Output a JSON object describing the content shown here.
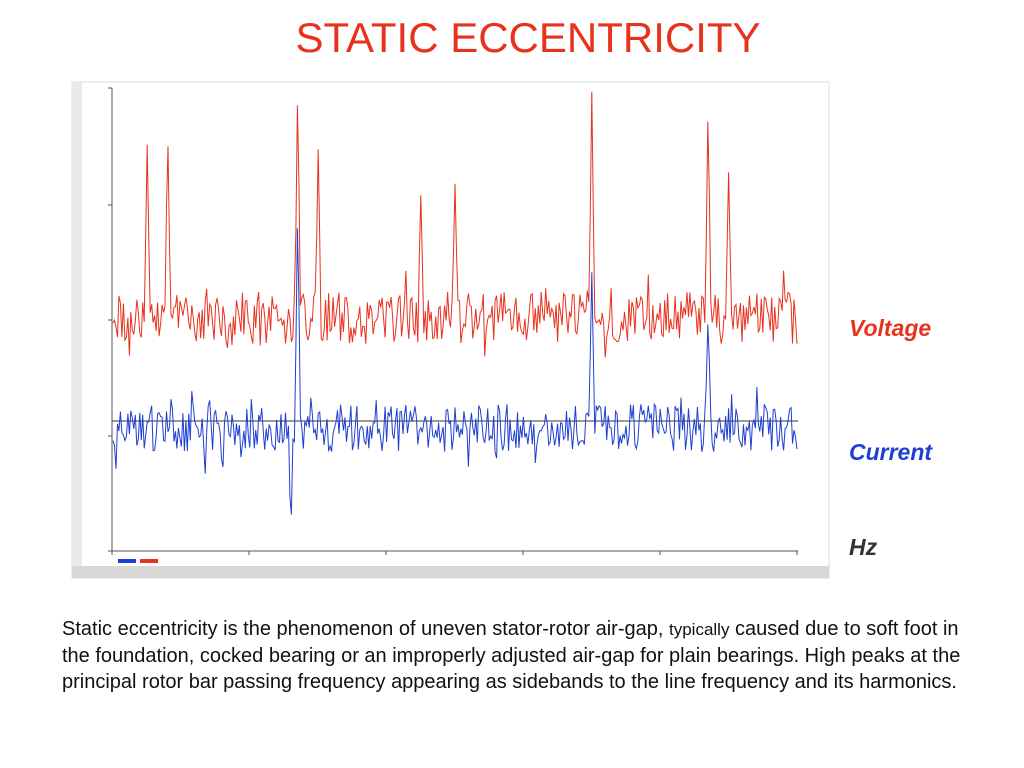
{
  "slide": {
    "title": "STATIC ECCENTRICITY",
    "description_main": "Static eccentricity is the phenomenon of uneven stator-rotor air-gap,",
    "description_small": "typically",
    "description_rest": "caused due to soft foot in the foundation, cocked bearing or an improperly adjusted air-gap for plain bearings. High peaks at the principal rotor bar passing frequency appearing as sidebands to the line frequency and its harmonics."
  },
  "legend": {
    "voltage": "Voltage",
    "current": "Current",
    "hz": "Hz"
  },
  "colors": {
    "title": "#e8321e",
    "voltage": "#e8321e",
    "current": "#1f3fd0",
    "zero_line": "#333333"
  },
  "chart_data": {
    "type": "line",
    "series": [
      {
        "name": "Voltage",
        "peaks": [
          {
            "x": 0.05,
            "y": 0.72
          },
          {
            "x": 0.08,
            "y": 0.8
          },
          {
            "x": 0.27,
            "y": 1.0
          },
          {
            "x": 0.3,
            "y": 0.7
          },
          {
            "x": 0.45,
            "y": 0.5
          },
          {
            "x": 0.5,
            "y": 0.55
          },
          {
            "x": 0.7,
            "y": 0.95
          },
          {
            "x": 0.87,
            "y": 0.92
          },
          {
            "x": 0.9,
            "y": 0.6
          }
        ]
      },
      {
        "name": "Current",
        "peaks": [
          {
            "x": 0.27,
            "y": 0.8
          },
          {
            "x": 0.7,
            "y": 0.55
          },
          {
            "x": 0.87,
            "y": 0.4
          }
        ],
        "dips": [
          {
            "x": 0.26,
            "y": -1.0
          },
          {
            "x": 0.16,
            "y": -0.45
          },
          {
            "x": 0.56,
            "y": -0.35
          }
        ]
      }
    ]
  }
}
